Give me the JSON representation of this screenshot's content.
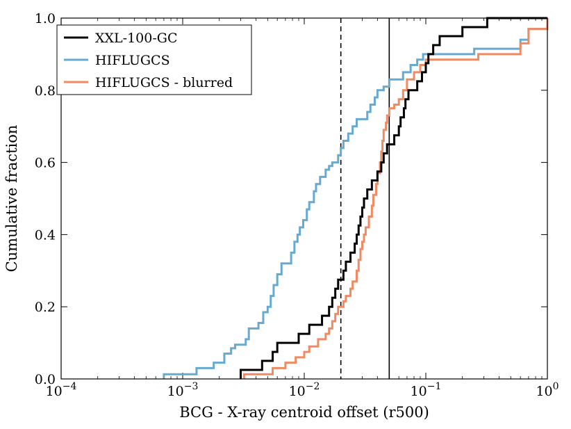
{
  "chart_data": {
    "type": "line",
    "subtype": "step-ecdf",
    "title": "",
    "xlabel": "BCG - X-ray centroid offset (r500)",
    "ylabel": "Cumulative fraction",
    "xscale": "log",
    "xlim": [
      0.0001,
      1
    ],
    "ylim": [
      0.0,
      1.0
    ],
    "x_ticks": [
      {
        "base": "10",
        "exp": "−4",
        "value": 0.0001
      },
      {
        "base": "10",
        "exp": "−3",
        "value": 0.001
      },
      {
        "base": "10",
        "exp": "−2",
        "value": 0.01
      },
      {
        "base": "10",
        "exp": "−1",
        "value": 0.1
      },
      {
        "base": "10",
        "exp": "0",
        "value": 1
      }
    ],
    "y_ticks": [
      {
        "label": "0.0",
        "value": 0.0
      },
      {
        "label": "0.2",
        "value": 0.2
      },
      {
        "label": "0.4",
        "value": 0.4
      },
      {
        "label": "0.6",
        "value": 0.6
      },
      {
        "label": "0.8",
        "value": 0.8
      },
      {
        "label": "1.0",
        "value": 1.0
      }
    ],
    "legend_position": "top-left",
    "reference_lines": [
      {
        "x": 0.02,
        "style": "dashed",
        "color": "#000000"
      },
      {
        "x": 0.05,
        "style": "solid",
        "color": "#000000"
      }
    ],
    "series": [
      {
        "name": "XXL-100-GC",
        "color": "#000000",
        "points": [
          [
            0.003,
            0.0
          ],
          [
            0.003,
            0.025
          ],
          [
            0.0045,
            0.025
          ],
          [
            0.0045,
            0.05
          ],
          [
            0.0055,
            0.05
          ],
          [
            0.0055,
            0.075
          ],
          [
            0.006,
            0.075
          ],
          [
            0.006,
            0.1
          ],
          [
            0.009,
            0.1
          ],
          [
            0.009,
            0.125
          ],
          [
            0.011,
            0.125
          ],
          [
            0.011,
            0.15
          ],
          [
            0.014,
            0.15
          ],
          [
            0.014,
            0.175
          ],
          [
            0.016,
            0.175
          ],
          [
            0.016,
            0.2
          ],
          [
            0.017,
            0.2
          ],
          [
            0.017,
            0.225
          ],
          [
            0.018,
            0.225
          ],
          [
            0.018,
            0.25
          ],
          [
            0.019,
            0.25
          ],
          [
            0.019,
            0.275
          ],
          [
            0.021,
            0.275
          ],
          [
            0.021,
            0.3
          ],
          [
            0.022,
            0.3
          ],
          [
            0.022,
            0.325
          ],
          [
            0.024,
            0.325
          ],
          [
            0.024,
            0.35
          ],
          [
            0.026,
            0.35
          ],
          [
            0.026,
            0.375
          ],
          [
            0.027,
            0.375
          ],
          [
            0.027,
            0.4
          ],
          [
            0.028,
            0.4
          ],
          [
            0.028,
            0.425
          ],
          [
            0.029,
            0.425
          ],
          [
            0.029,
            0.45
          ],
          [
            0.03,
            0.45
          ],
          [
            0.03,
            0.475
          ],
          [
            0.031,
            0.475
          ],
          [
            0.031,
            0.5
          ],
          [
            0.033,
            0.5
          ],
          [
            0.033,
            0.525
          ],
          [
            0.036,
            0.525
          ],
          [
            0.036,
            0.55
          ],
          [
            0.04,
            0.55
          ],
          [
            0.04,
            0.575
          ],
          [
            0.043,
            0.575
          ],
          [
            0.043,
            0.6
          ],
          [
            0.045,
            0.6
          ],
          [
            0.045,
            0.625
          ],
          [
            0.048,
            0.625
          ],
          [
            0.048,
            0.65
          ],
          [
            0.055,
            0.65
          ],
          [
            0.055,
            0.675
          ],
          [
            0.06,
            0.675
          ],
          [
            0.06,
            0.7
          ],
          [
            0.062,
            0.7
          ],
          [
            0.062,
            0.725
          ],
          [
            0.066,
            0.725
          ],
          [
            0.066,
            0.75
          ],
          [
            0.068,
            0.75
          ],
          [
            0.068,
            0.775
          ],
          [
            0.072,
            0.775
          ],
          [
            0.072,
            0.8
          ],
          [
            0.085,
            0.8
          ],
          [
            0.085,
            0.825
          ],
          [
            0.093,
            0.825
          ],
          [
            0.093,
            0.85
          ],
          [
            0.1,
            0.85
          ],
          [
            0.1,
            0.875
          ],
          [
            0.105,
            0.875
          ],
          [
            0.105,
            0.9
          ],
          [
            0.115,
            0.9
          ],
          [
            0.115,
            0.925
          ],
          [
            0.13,
            0.925
          ],
          [
            0.13,
            0.95
          ],
          [
            0.2,
            0.95
          ],
          [
            0.2,
            0.975
          ],
          [
            0.32,
            0.975
          ],
          [
            0.32,
            1.0
          ],
          [
            1.0,
            1.0
          ]
        ]
      },
      {
        "name": "HIFLUGCS",
        "color": "#67a9cf",
        "points": [
          [
            0.0007,
            0.0
          ],
          [
            0.0007,
            0.013
          ],
          [
            0.0013,
            0.013
          ],
          [
            0.0013,
            0.03
          ],
          [
            0.0018,
            0.03
          ],
          [
            0.0018,
            0.045
          ],
          [
            0.0022,
            0.045
          ],
          [
            0.0022,
            0.07
          ],
          [
            0.0025,
            0.07
          ],
          [
            0.0025,
            0.085
          ],
          [
            0.0027,
            0.085
          ],
          [
            0.0027,
            0.095
          ],
          [
            0.0033,
            0.095
          ],
          [
            0.0033,
            0.11
          ],
          [
            0.0035,
            0.11
          ],
          [
            0.0035,
            0.14
          ],
          [
            0.0042,
            0.14
          ],
          [
            0.0042,
            0.155
          ],
          [
            0.0046,
            0.155
          ],
          [
            0.0046,
            0.185
          ],
          [
            0.005,
            0.185
          ],
          [
            0.005,
            0.2
          ],
          [
            0.0053,
            0.2
          ],
          [
            0.0053,
            0.23
          ],
          [
            0.0056,
            0.23
          ],
          [
            0.0056,
            0.26
          ],
          [
            0.006,
            0.26
          ],
          [
            0.006,
            0.29
          ],
          [
            0.0065,
            0.29
          ],
          [
            0.0065,
            0.32
          ],
          [
            0.0078,
            0.32
          ],
          [
            0.0078,
            0.35
          ],
          [
            0.0083,
            0.35
          ],
          [
            0.0083,
            0.38
          ],
          [
            0.0088,
            0.38
          ],
          [
            0.0088,
            0.4
          ],
          [
            0.0092,
            0.4
          ],
          [
            0.0092,
            0.42
          ],
          [
            0.0098,
            0.42
          ],
          [
            0.0098,
            0.44
          ],
          [
            0.0105,
            0.44
          ],
          [
            0.0105,
            0.47
          ],
          [
            0.011,
            0.47
          ],
          [
            0.011,
            0.49
          ],
          [
            0.012,
            0.49
          ],
          [
            0.012,
            0.52
          ],
          [
            0.0125,
            0.52
          ],
          [
            0.0125,
            0.54
          ],
          [
            0.0135,
            0.54
          ],
          [
            0.0135,
            0.56
          ],
          [
            0.015,
            0.56
          ],
          [
            0.015,
            0.58
          ],
          [
            0.016,
            0.58
          ],
          [
            0.016,
            0.59
          ],
          [
            0.017,
            0.59
          ],
          [
            0.017,
            0.6
          ],
          [
            0.019,
            0.6
          ],
          [
            0.019,
            0.62
          ],
          [
            0.02,
            0.62
          ],
          [
            0.02,
            0.64
          ],
          [
            0.021,
            0.64
          ],
          [
            0.021,
            0.66
          ],
          [
            0.023,
            0.66
          ],
          [
            0.023,
            0.68
          ],
          [
            0.025,
            0.68
          ],
          [
            0.025,
            0.7
          ],
          [
            0.027,
            0.7
          ],
          [
            0.027,
            0.72
          ],
          [
            0.033,
            0.72
          ],
          [
            0.033,
            0.74
          ],
          [
            0.035,
            0.74
          ],
          [
            0.035,
            0.76
          ],
          [
            0.038,
            0.76
          ],
          [
            0.038,
            0.78
          ],
          [
            0.04,
            0.78
          ],
          [
            0.04,
            0.8
          ],
          [
            0.045,
            0.8
          ],
          [
            0.045,
            0.81
          ],
          [
            0.05,
            0.81
          ],
          [
            0.05,
            0.83
          ],
          [
            0.065,
            0.83
          ],
          [
            0.065,
            0.85
          ],
          [
            0.075,
            0.85
          ],
          [
            0.075,
            0.87
          ],
          [
            0.085,
            0.87
          ],
          [
            0.085,
            0.885
          ],
          [
            0.095,
            0.885
          ],
          [
            0.095,
            0.9
          ],
          [
            0.25,
            0.9
          ],
          [
            0.25,
            0.915
          ],
          [
            0.6,
            0.915
          ],
          [
            0.6,
            0.94
          ],
          [
            0.7,
            0.94
          ],
          [
            0.7,
            0.97
          ],
          [
            1.0,
            0.97
          ],
          [
            1.0,
            1.0
          ]
        ]
      },
      {
        "name": "HIFLUGCS - blurred",
        "color": "#ef8a62",
        "points": [
          [
            0.0032,
            0.0
          ],
          [
            0.0032,
            0.013
          ],
          [
            0.0055,
            0.013
          ],
          [
            0.0055,
            0.03
          ],
          [
            0.007,
            0.03
          ],
          [
            0.007,
            0.045
          ],
          [
            0.0085,
            0.045
          ],
          [
            0.0085,
            0.06
          ],
          [
            0.01,
            0.06
          ],
          [
            0.01,
            0.075
          ],
          [
            0.011,
            0.075
          ],
          [
            0.011,
            0.09
          ],
          [
            0.013,
            0.09
          ],
          [
            0.013,
            0.11
          ],
          [
            0.015,
            0.11
          ],
          [
            0.015,
            0.125
          ],
          [
            0.016,
            0.125
          ],
          [
            0.016,
            0.14
          ],
          [
            0.017,
            0.14
          ],
          [
            0.017,
            0.16
          ],
          [
            0.018,
            0.16
          ],
          [
            0.018,
            0.18
          ],
          [
            0.019,
            0.18
          ],
          [
            0.019,
            0.2
          ],
          [
            0.021,
            0.2
          ],
          [
            0.021,
            0.215
          ],
          [
            0.022,
            0.215
          ],
          [
            0.022,
            0.23
          ],
          [
            0.024,
            0.23
          ],
          [
            0.024,
            0.25
          ],
          [
            0.025,
            0.25
          ],
          [
            0.025,
            0.27
          ],
          [
            0.027,
            0.27
          ],
          [
            0.027,
            0.3
          ],
          [
            0.028,
            0.3
          ],
          [
            0.028,
            0.33
          ],
          [
            0.029,
            0.33
          ],
          [
            0.029,
            0.36
          ],
          [
            0.03,
            0.36
          ],
          [
            0.03,
            0.38
          ],
          [
            0.031,
            0.38
          ],
          [
            0.031,
            0.4
          ],
          [
            0.032,
            0.4
          ],
          [
            0.032,
            0.42
          ],
          [
            0.034,
            0.42
          ],
          [
            0.034,
            0.45
          ],
          [
            0.036,
            0.45
          ],
          [
            0.036,
            0.48
          ],
          [
            0.037,
            0.48
          ],
          [
            0.037,
            0.51
          ],
          [
            0.039,
            0.51
          ],
          [
            0.039,
            0.54
          ],
          [
            0.04,
            0.54
          ],
          [
            0.04,
            0.57
          ],
          [
            0.042,
            0.57
          ],
          [
            0.042,
            0.6
          ],
          [
            0.043,
            0.6
          ],
          [
            0.043,
            0.63
          ],
          [
            0.044,
            0.63
          ],
          [
            0.044,
            0.66
          ],
          [
            0.045,
            0.66
          ],
          [
            0.045,
            0.69
          ],
          [
            0.047,
            0.69
          ],
          [
            0.047,
            0.71
          ],
          [
            0.048,
            0.71
          ],
          [
            0.048,
            0.73
          ],
          [
            0.05,
            0.73
          ],
          [
            0.05,
            0.75
          ],
          [
            0.055,
            0.75
          ],
          [
            0.055,
            0.76
          ],
          [
            0.06,
            0.76
          ],
          [
            0.06,
            0.775
          ],
          [
            0.065,
            0.775
          ],
          [
            0.065,
            0.8
          ],
          [
            0.07,
            0.8
          ],
          [
            0.07,
            0.83
          ],
          [
            0.08,
            0.83
          ],
          [
            0.08,
            0.85
          ],
          [
            0.09,
            0.85
          ],
          [
            0.09,
            0.87
          ],
          [
            0.1,
            0.87
          ],
          [
            0.1,
            0.885
          ],
          [
            0.27,
            0.885
          ],
          [
            0.27,
            0.9
          ],
          [
            0.6,
            0.9
          ],
          [
            0.6,
            0.93
          ],
          [
            0.7,
            0.93
          ],
          [
            0.7,
            0.97
          ],
          [
            1.0,
            0.97
          ],
          [
            1.0,
            1.0
          ]
        ]
      }
    ]
  }
}
